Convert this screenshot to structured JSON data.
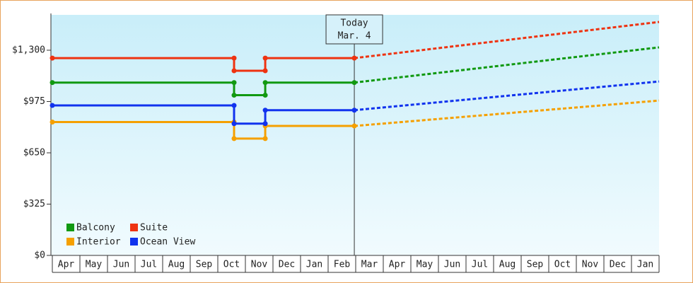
{
  "chart_data": {
    "type": "line",
    "categories": [
      "Apr",
      "May",
      "Jun",
      "Jul",
      "Aug",
      "Sep",
      "Oct",
      "Nov",
      "Dec",
      "Jan",
      "Feb",
      "Mar",
      "Apr",
      "May",
      "Jun",
      "Jul",
      "Aug",
      "Sep",
      "Oct",
      "Nov",
      "Dec",
      "Jan"
    ],
    "xlim": [
      0,
      22
    ],
    "ylim": [
      0,
      1524
    ],
    "yticks": [
      {
        "value": 0,
        "label": "$0"
      },
      {
        "value": 325,
        "label": "$325"
      },
      {
        "value": 650,
        "label": "$650"
      },
      {
        "value": 975,
        "label": "$975"
      },
      {
        "value": 1300,
        "label": "$1,300"
      }
    ],
    "annotation": {
      "text": [
        "Today",
        "Mar. 4"
      ],
      "x": 10.95
    },
    "legend": "bottom-left",
    "series": [
      {
        "name": "Balcony",
        "color": "#119911",
        "x": [
          0,
          6.59,
          6.59,
          7.72,
          7.72,
          10.95
        ],
        "values": [
          1095,
          1095,
          1015,
          1015,
          1095,
          1095
        ],
        "forecast_x": [
          10.95,
          22
        ],
        "forecast_values": [
          1095,
          1318
        ]
      },
      {
        "name": "Suite",
        "color": "#ee3311",
        "x": [
          0,
          6.59,
          6.59,
          7.72,
          7.72,
          10.95
        ],
        "values": [
          1250,
          1250,
          1170,
          1170,
          1250,
          1250
        ],
        "forecast_x": [
          10.95,
          22
        ],
        "forecast_values": [
          1250,
          1479
        ]
      },
      {
        "name": "Interior",
        "color": "#f5a000",
        "x": [
          0,
          6.59,
          6.59,
          7.72,
          7.72,
          10.95
        ],
        "values": [
          845,
          845,
          740,
          740,
          820,
          820
        ],
        "forecast_x": [
          10.95,
          22
        ],
        "forecast_values": [
          820,
          981
        ]
      },
      {
        "name": "Ocean View",
        "color": "#1133ee",
        "x": [
          0,
          6.59,
          6.59,
          7.72,
          7.72,
          10.95
        ],
        "values": [
          950,
          950,
          835,
          835,
          920,
          920
        ],
        "forecast_x": [
          10.95,
          22
        ],
        "forecast_values": [
          920,
          1102
        ]
      }
    ]
  }
}
